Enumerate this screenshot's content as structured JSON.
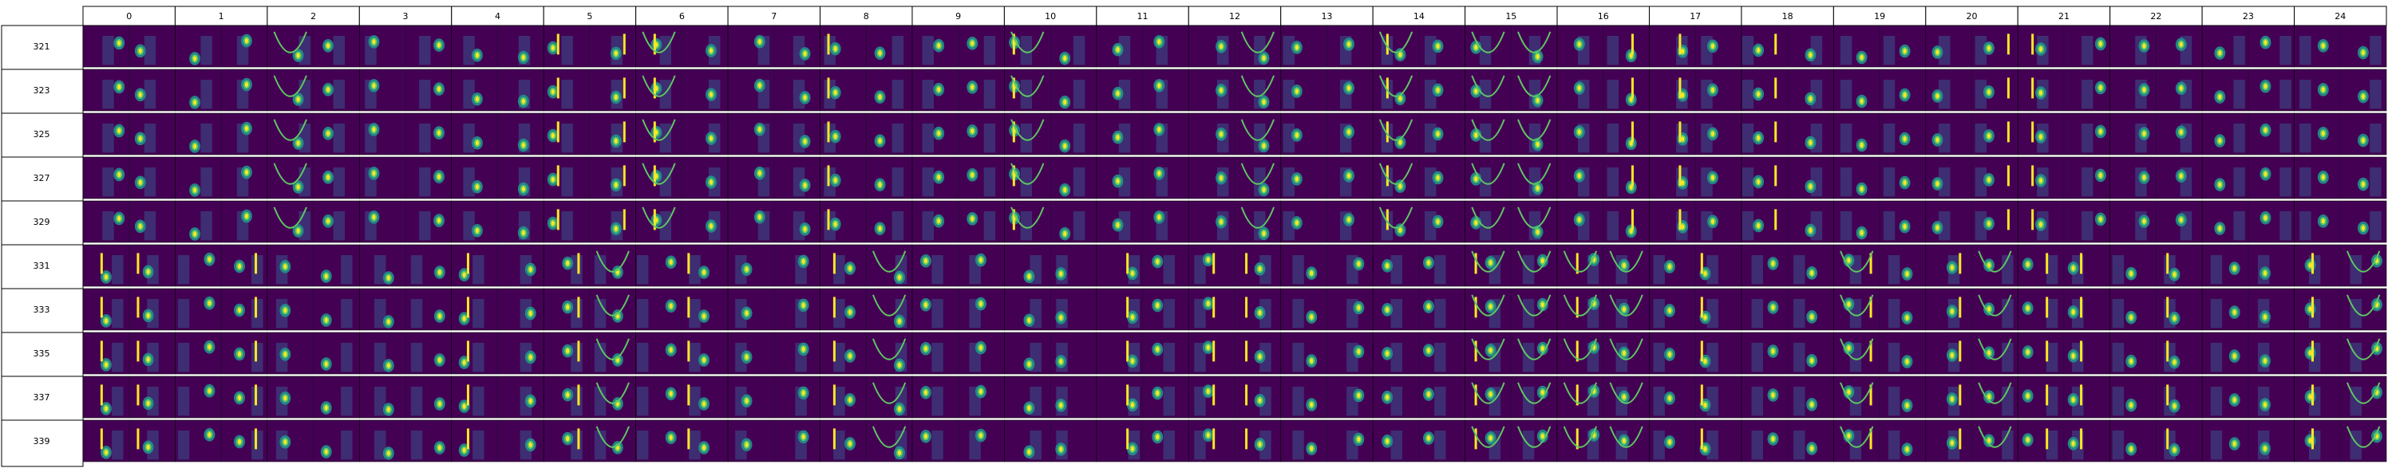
{
  "grid": {
    "column_labels": [
      "0",
      "1",
      "2",
      "3",
      "4",
      "5",
      "6",
      "7",
      "8",
      "9",
      "10",
      "11",
      "12",
      "13",
      "14",
      "15",
      "16",
      "17",
      "18",
      "19",
      "20",
      "21",
      "22",
      "23",
      "24"
    ],
    "row_labels": [
      "321",
      "323",
      "325",
      "327",
      "329",
      "331",
      "333",
      "335",
      "337",
      "339"
    ],
    "colormap": [
      "#440154",
      "#3b528b",
      "#21918c",
      "#5ec962",
      "#fde725"
    ],
    "background_color": "#440154"
  }
}
